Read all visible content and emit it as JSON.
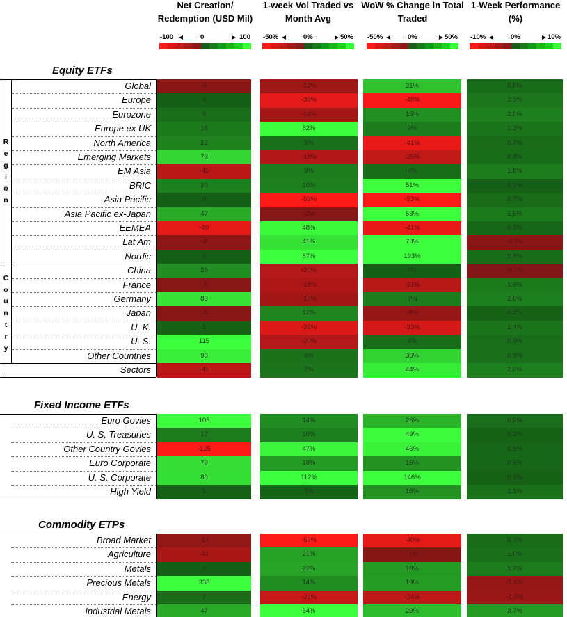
{
  "chart_data": {
    "type": "table",
    "columns": [
      {
        "title": "Net Creation/ Redemption (USD Mil)",
        "scale_min": "-100",
        "scale_mid": "0",
        "scale_max": "100",
        "min": -100,
        "max": 100
      },
      {
        "title": "1-week Vol Traded vs Month Avg",
        "scale_min": "-50%",
        "scale_mid": "0%",
        "scale_max": "50%",
        "min": -50,
        "max": 50
      },
      {
        "title": "WoW % Change in Total Traded",
        "scale_min": "-50%",
        "scale_mid": "0%",
        "scale_max": "50%",
        "min": -50,
        "max": 50
      },
      {
        "title": "1-Week Performance (%)",
        "scale_min": "-10%",
        "scale_mid": "0%",
        "scale_max": "10%",
        "min": -10,
        "max": 10
      }
    ],
    "sections": [
      {
        "title": "Equity ETFs",
        "groups": [
          {
            "label": "Region",
            "rows": [
              0,
              1,
              2,
              3,
              4,
              5,
              6,
              7,
              8,
              9,
              10,
              11,
              12
            ]
          },
          {
            "label": "Country",
            "rows": [
              13,
              14,
              15,
              16,
              17,
              18,
              19
            ]
          }
        ],
        "rows": [
          {
            "name": "Global",
            "values": [
              "-6",
              "-12%",
              "31%",
              "0.8%"
            ],
            "nums": [
              -6,
              -12,
              31,
              0.8
            ]
          },
          {
            "name": "Europe",
            "values": [
              "0",
              "-39%",
              "-48%",
              "1.5%"
            ],
            "nums": [
              0,
              -39,
              -48,
              1.5
            ]
          },
          {
            "name": "Eurozone",
            "values": [
              "9",
              "-14%",
              "15%",
              "2.0%"
            ],
            "nums": [
              9,
              -14,
              15,
              2.0
            ]
          },
          {
            "name": "Europe ex UK",
            "values": [
              "16",
              "62%",
              "9%",
              "1.3%"
            ],
            "nums": [
              16,
              62,
              9,
              1.3
            ]
          },
          {
            "name": "North America",
            "values": [
              "22",
              "5%",
              "-41%",
              "0.7%"
            ],
            "nums": [
              22,
              5,
              -41,
              0.7
            ]
          },
          {
            "name": "Emerging Markets",
            "values": [
              "73",
              "-19%",
              "-25%",
              "0.8%"
            ],
            "nums": [
              73,
              -19,
              -25,
              0.8
            ]
          },
          {
            "name": "EM Asia",
            "values": [
              "-45",
              "9%",
              "4%",
              "1.8%"
            ],
            "nums": [
              -45,
              9,
              4,
              1.8
            ]
          },
          {
            "name": "BRIC",
            "values": [
              "20",
              "10%",
              "51%",
              "0.0%"
            ],
            "nums": [
              20,
              10,
              51,
              0.0
            ]
          },
          {
            "name": "Asia Pacific",
            "values": [
              "0",
              "-59%",
              "-53%",
              "0.7%"
            ],
            "nums": [
              0,
              -59,
              -53,
              0.7
            ]
          },
          {
            "name": "Asia Pacific ex-Japan",
            "values": [
              "47",
              "-2%",
              "53%",
              "1.6%"
            ],
            "nums": [
              47,
              -2,
              53,
              1.6
            ]
          },
          {
            "name": "EEMEA",
            "values": [
              "-80",
              "48%",
              "-41%",
              "0.5%"
            ],
            "nums": [
              -80,
              48,
              -41,
              0.5
            ]
          },
          {
            "name": "Lat Am",
            "values": [
              "-9",
              "41%",
              "73%",
              "-0.7%"
            ],
            "nums": [
              -9,
              41,
              73,
              -0.7
            ]
          },
          {
            "name": "Nordic",
            "values": [
              "0",
              "87%",
              "193%",
              "0.8%"
            ],
            "nums": [
              0,
              87,
              193,
              0.8
            ]
          },
          {
            "name": "China",
            "values": [
              "29",
              "-20%",
              "0%",
              "-0.1%"
            ],
            "nums": [
              29,
              -20,
              0,
              -0.1
            ]
          },
          {
            "name": "France",
            "values": [
              "-4",
              "-18%",
              "-21%",
              "1.6%"
            ],
            "nums": [
              -4,
              -18,
              -21,
              1.6
            ]
          },
          {
            "name": "Germany",
            "values": [
              "83",
              "-13%",
              "9%",
              "2.0%"
            ],
            "nums": [
              83,
              -13,
              9,
              2.0
            ]
          },
          {
            "name": "Japan",
            "values": [
              "-4",
              "12%",
              "-8%",
              "0.2%"
            ],
            "nums": [
              -4,
              12,
              -8,
              0.2
            ]
          },
          {
            "name": "U. K.",
            "values": [
              "2",
              "-36%",
              "-33%",
              "1.4%"
            ],
            "nums": [
              2,
              -36,
              -33,
              1.4
            ]
          },
          {
            "name": "U. S.",
            "values": [
              "115",
              "-20%",
              "4%",
              "0.9%"
            ],
            "nums": [
              115,
              -20,
              4,
              0.9
            ]
          },
          {
            "name": "Other Countries",
            "values": [
              "90",
              "6%",
              "36%",
              "0.9%"
            ],
            "nums": [
              90,
              6,
              36,
              0.9
            ]
          },
          {
            "name": "Sectors",
            "values": [
              "-45",
              "7%",
              "44%",
              "2.0%"
            ],
            "nums": [
              -45,
              7,
              44,
              2.0
            ]
          }
        ]
      },
      {
        "title": "Fixed Income ETFs",
        "groups": [],
        "rows": [
          {
            "name": "Euro Govies",
            "values": [
              "105",
              "14%",
              "26%",
              "0.9%"
            ],
            "nums": [
              105,
              14,
              26,
              0.9
            ]
          },
          {
            "name": "U. S. Treasuries",
            "values": [
              "17",
              "10%",
              "49%",
              "0.2%"
            ],
            "nums": [
              17,
              10,
              49,
              0.2
            ]
          },
          {
            "name": "Other Country Govies",
            "values": [
              "-125",
              "47%",
              "46%",
              "0.5%"
            ],
            "nums": [
              -125,
              47,
              46,
              0.5
            ]
          },
          {
            "name": "Euro Corporate",
            "values": [
              "79",
              "18%",
              "16%",
              "0.5%"
            ],
            "nums": [
              79,
              18,
              16,
              0.5
            ]
          },
          {
            "name": "U. S. Corporate",
            "values": [
              "80",
              "112%",
              "146%",
              "0.1%"
            ],
            "nums": [
              80,
              112,
              146,
              0.1
            ]
          },
          {
            "name": "High Yield",
            "values": [
              "1",
              "1%",
              "16%",
              "1.1%"
            ],
            "nums": [
              1,
              1,
              16,
              1.1
            ]
          }
        ]
      },
      {
        "title": "Commodity ETPs",
        "groups": [],
        "rows": [
          {
            "name": "Broad Market",
            "values": [
              "-14",
              "-53%",
              "-40%",
              "0.7%"
            ],
            "nums": [
              -14,
              -53,
              -40,
              0.7
            ]
          },
          {
            "name": "Agriculture",
            "values": [
              "-31",
              "21%",
              "-1%",
              "1.0%"
            ],
            "nums": [
              -31,
              21,
              -1,
              1.0
            ]
          },
          {
            "name": "Metals",
            "values": [
              "0",
              "22%",
              "18%",
              "1.7%"
            ],
            "nums": [
              0,
              22,
              18,
              1.7
            ]
          },
          {
            "name": "Precious Metals",
            "values": [
              "338",
              "14%",
              "19%",
              "-1.6%"
            ],
            "nums": [
              338,
              14,
              19,
              -1.6
            ]
          },
          {
            "name": "Energy",
            "values": [
              "7",
              "-28%",
              "-24%",
              "-1.9%"
            ],
            "nums": [
              7,
              -28,
              -24,
              -1.9
            ]
          },
          {
            "name": "Industrial Metals",
            "values": [
              "47",
              "64%",
              "29%",
              "3.7%"
            ],
            "nums": [
              47,
              64,
              29,
              3.7
            ]
          }
        ]
      }
    ],
    "color_scale": [
      "#ff1a1a",
      "#e01515",
      "#c41a1a",
      "#a81a1a",
      "#8a1a1a",
      "#1a5a1a",
      "#1a7a1a",
      "#15991a",
      "#1ab81a",
      "#1ad41a",
      "#33ff33"
    ]
  }
}
